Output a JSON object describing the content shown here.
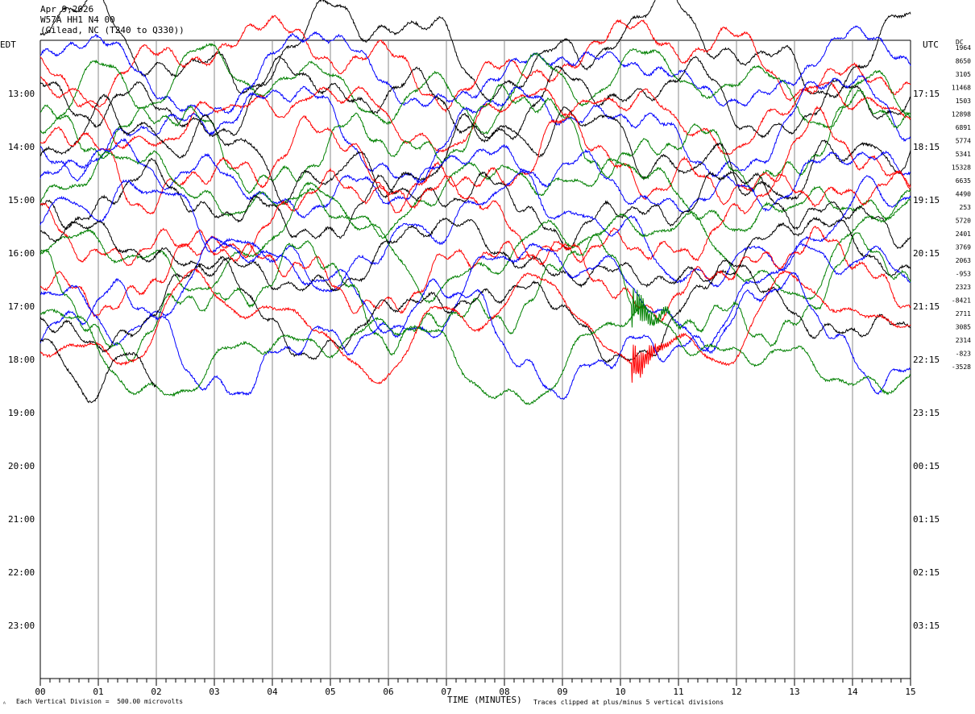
{
  "header": {
    "date": "Apr 9,2026",
    "station": "W57A HH1 N4 00",
    "location": "(Gilead, NC (T240 to Q330))"
  },
  "left_axis_title": "EDT",
  "right_axis_title": "UTC",
  "dc_title": "DC",
  "footer": {
    "division": "Each Vertical Division =  500.00 microvolts",
    "xlabel": "TIME (MINUTES)",
    "clip_note": "Traces clipped at plus/minus 5 vertical divisions",
    "corner_mark": "ᴬ"
  },
  "chart_data": {
    "type": "line",
    "xlabel": "TIME (MINUTES)",
    "x_ticks": [
      "00",
      "01",
      "02",
      "03",
      "04",
      "05",
      "06",
      "07",
      "08",
      "09",
      "10",
      "11",
      "12",
      "13",
      "14",
      "15"
    ],
    "xlim": [
      0,
      15
    ],
    "edt_labels": [
      "13:00",
      "14:00",
      "15:00",
      "16:00",
      "17:00",
      "18:00",
      "19:00",
      "20:00",
      "21:00",
      "22:00",
      "23:00"
    ],
    "utc_labels": [
      "17:15",
      "18:15",
      "19:15",
      "20:15",
      "21:15",
      "22:15",
      "23:15",
      "00:15",
      "01:15",
      "02:15",
      "03:15"
    ],
    "dc_offsets": [
      "1964",
      "8650",
      "3105",
      "11468",
      "1503",
      "12898",
      "6891",
      "5774",
      "5341",
      "15328",
      "6635",
      "4490",
      "253",
      "5720",
      "2401",
      "3769",
      "2063",
      "-953",
      "2323",
      "-8421",
      "2711",
      "3085",
      "2314",
      "-823",
      "-3528"
    ],
    "trace_colors": [
      "#000000",
      "#ff0000",
      "#0000ff",
      "#008000"
    ],
    "event_minute": 10.2,
    "units": "500.00 microvolts per division"
  }
}
